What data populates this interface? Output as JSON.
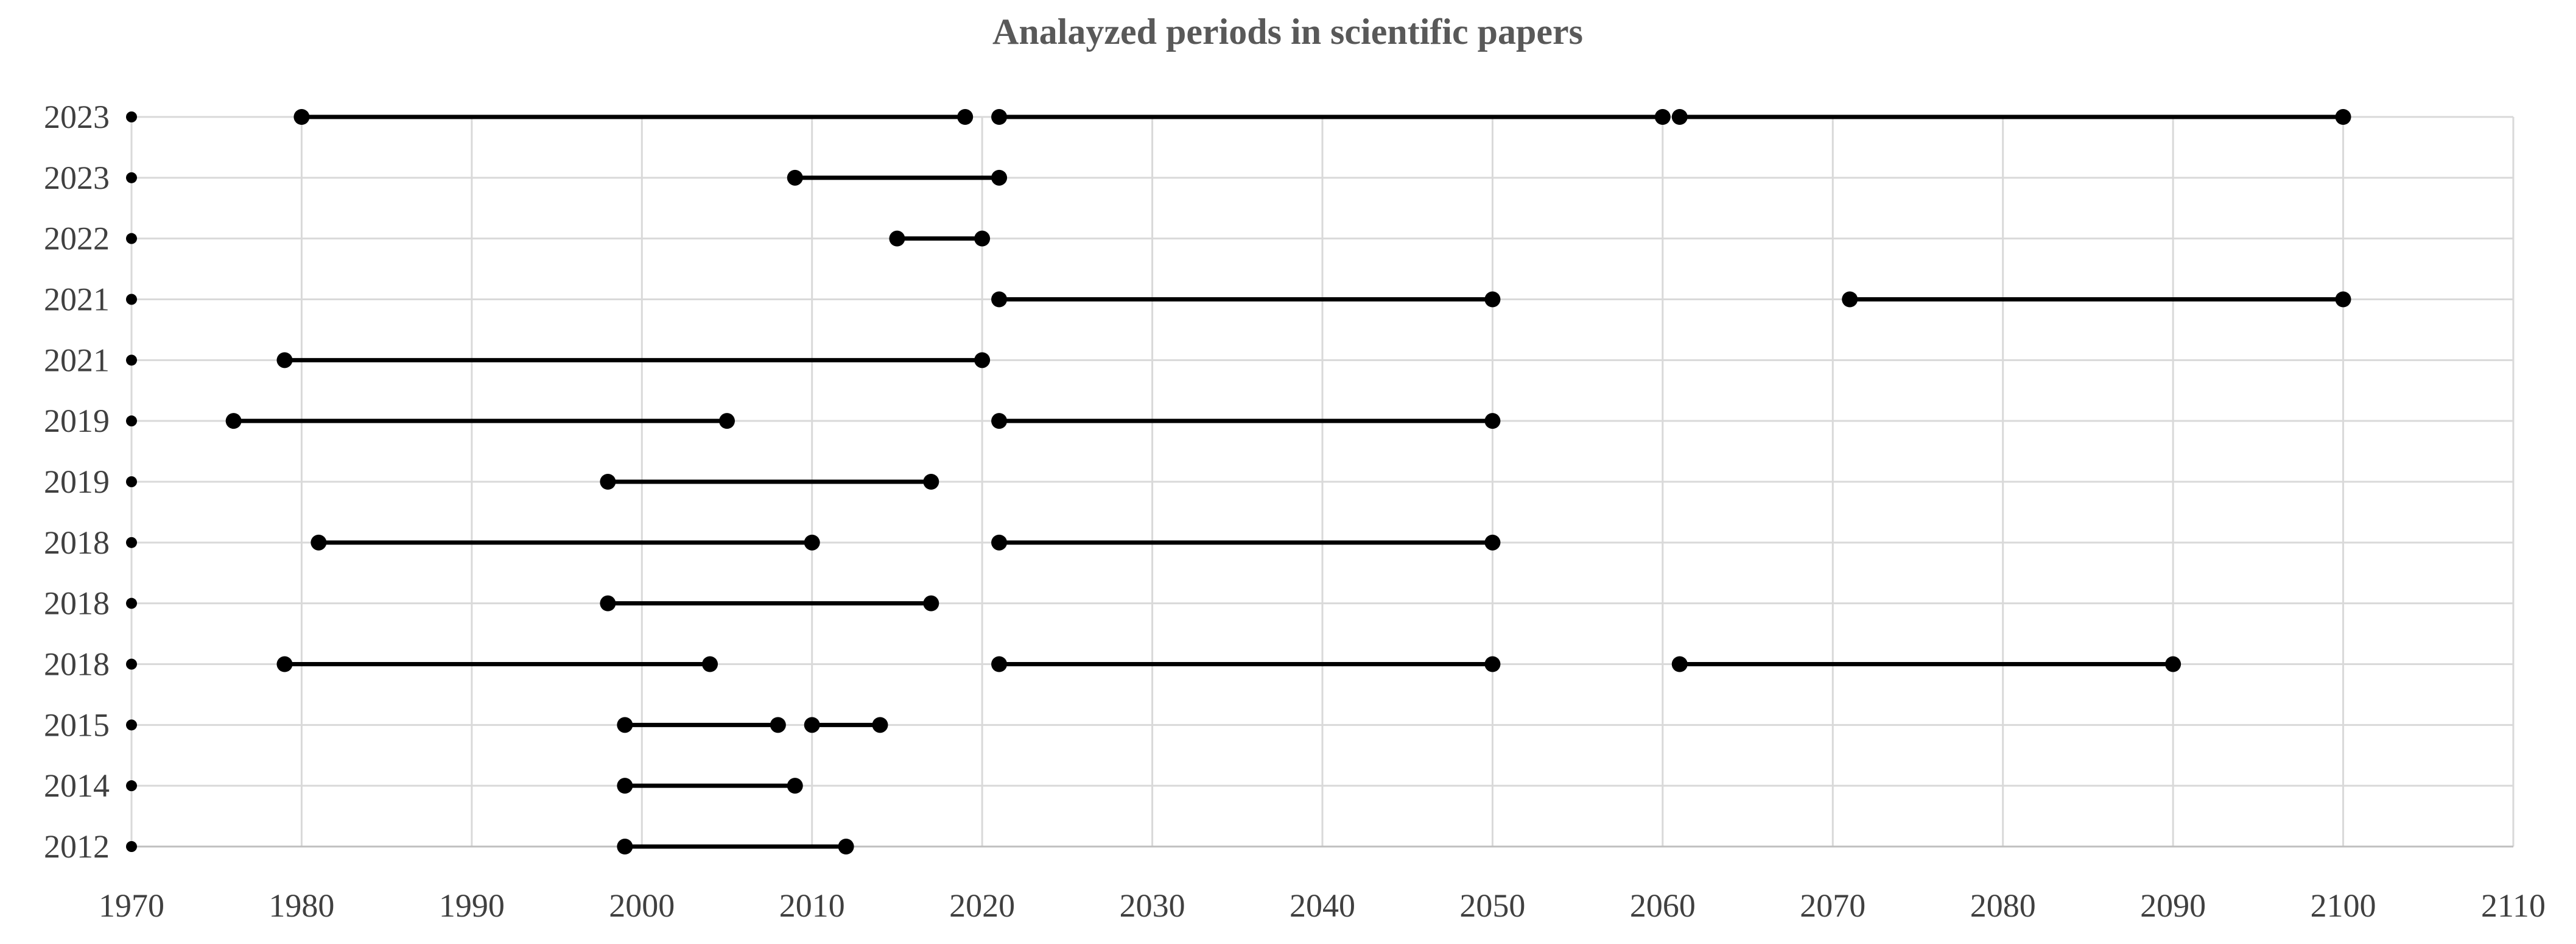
{
  "chart_data": {
    "type": "dumbbell",
    "title": "Analayzed periods in scientific papers",
    "xlabel": "",
    "ylabel": "",
    "xlim": [
      1970,
      2110
    ],
    "x_ticks": [
      1970,
      1980,
      1990,
      2000,
      2010,
      2020,
      2030,
      2040,
      2050,
      2060,
      2070,
      2080,
      2090,
      2100,
      2110
    ],
    "grid": true,
    "legend": "none",
    "marker_color": "#000000",
    "grid_color": "#d9d9d9",
    "rows": [
      {
        "label": "2023",
        "marker": 1970,
        "periods": [
          [
            1980,
            2019
          ],
          [
            2021,
            2060
          ],
          [
            2061,
            2100
          ]
        ]
      },
      {
        "label": "2023",
        "marker": 1970,
        "periods": [
          [
            2009,
            2021
          ]
        ]
      },
      {
        "label": "2022",
        "marker": 1970,
        "periods": [
          [
            2015,
            2020
          ]
        ]
      },
      {
        "label": "2021",
        "marker": 1970,
        "periods": [
          [
            2021,
            2050
          ],
          [
            2071,
            2100
          ]
        ]
      },
      {
        "label": "2021",
        "marker": 1970,
        "periods": [
          [
            1979,
            2020
          ]
        ]
      },
      {
        "label": "2019",
        "marker": 1970,
        "periods": [
          [
            1976,
            2005
          ],
          [
            2021,
            2050
          ]
        ]
      },
      {
        "label": "2019",
        "marker": 1970,
        "periods": [
          [
            1998,
            2017
          ]
        ]
      },
      {
        "label": "2018",
        "marker": 1970,
        "periods": [
          [
            1981,
            2010
          ],
          [
            2021,
            2050
          ]
        ]
      },
      {
        "label": "2018",
        "marker": 1970,
        "periods": [
          [
            1998,
            2017
          ]
        ]
      },
      {
        "label": "2018",
        "marker": 1970,
        "periods": [
          [
            1979,
            2004
          ],
          [
            2021,
            2050
          ],
          [
            2061,
            2090
          ]
        ]
      },
      {
        "label": "2015",
        "marker": 1970,
        "periods": [
          [
            1999,
            2008
          ],
          [
            2010,
            2014
          ]
        ]
      },
      {
        "label": "2014",
        "marker": 1970,
        "periods": [
          [
            1999,
            2009
          ]
        ]
      },
      {
        "label": "2012",
        "marker": 1970,
        "periods": [
          [
            1999,
            2012
          ]
        ]
      }
    ]
  }
}
